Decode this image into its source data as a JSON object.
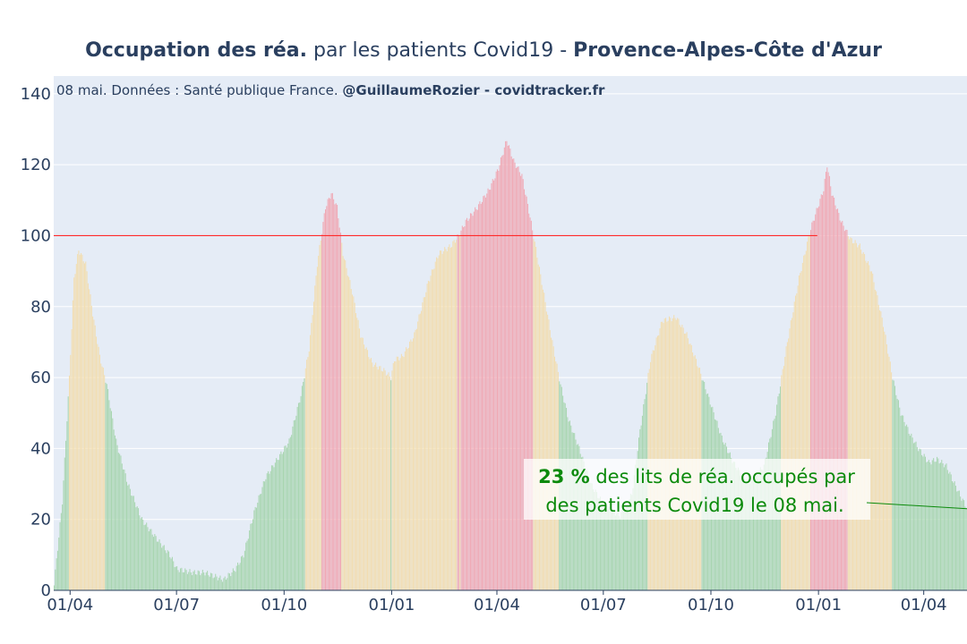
{
  "title": {
    "bold_1": "Occupation des réa.",
    "normal": " par les patients Covid19 - ",
    "bold_2": "Provence-Alpes-Côte d'Azur"
  },
  "subtitle": {
    "normal": "08 mai. Données : Santé publique France. ",
    "bold": "@GuillaumeRozier - covidtracker.fr"
  },
  "annotation": {
    "value": "23",
    "unit": " %",
    "line1": " des lits de réa. occupés par",
    "line2": "des patients Covid19 le 08 mai."
  },
  "colors": {
    "green": "#a8d5b0",
    "orange": "#f2ddb0",
    "red": "#f0a8b4",
    "threshold": "#ff2a2a",
    "plot_bg": "#e5ecf6",
    "annotation_text": "#0b8a0b"
  },
  "chart_data": {
    "type": "bar",
    "title": "Occupation des réa. par les patients Covid19 - Provence-Alpes-Côte d'Azur",
    "x_tick_labels": [
      "01/04",
      "01/07",
      "01/10",
      "01/01",
      "01/04",
      "01/07",
      "01/10",
      "01/01",
      "01/04"
    ],
    "x_tick_dates": [
      "2020-04-01",
      "2020-07-01",
      "2020-10-01",
      "2021-01-01",
      "2021-04-01",
      "2021-07-01",
      "2021-10-01",
      "2022-01-01",
      "2022-04-01"
    ],
    "xlim": [
      "2020-03-18",
      "2022-05-08"
    ],
    "y_tick_labels": [
      "0",
      "20",
      "40",
      "60",
      "80",
      "100",
      "120",
      "140"
    ],
    "ylim": [
      0,
      145
    ],
    "grid": true,
    "threshold": {
      "y": 100,
      "x_start": "2020-03-18",
      "x_end": "2021-12-31"
    },
    "color_rule": "green below 60, orange 60 to 100, red at or above 100",
    "series_anchors": [
      [
        "2020-03-18",
        2
      ],
      [
        "2020-03-25",
        25
      ],
      [
        "2020-03-31",
        60
      ],
      [
        "2020-04-04",
        88
      ],
      [
        "2020-04-08",
        96
      ],
      [
        "2020-04-14",
        92
      ],
      [
        "2020-04-20",
        78
      ],
      [
        "2020-04-26",
        66
      ],
      [
        "2020-05-02",
        58
      ],
      [
        "2020-05-10",
        42
      ],
      [
        "2020-05-20",
        30
      ],
      [
        "2020-06-01",
        20
      ],
      [
        "2020-06-15",
        14
      ],
      [
        "2020-06-25",
        10
      ],
      [
        "2020-07-01",
        6
      ],
      [
        "2020-07-15",
        5
      ],
      [
        "2020-07-25",
        5
      ],
      [
        "2020-08-10",
        3
      ],
      [
        "2020-08-20",
        6
      ],
      [
        "2020-08-27",
        10
      ],
      [
        "2020-09-05",
        22
      ],
      [
        "2020-09-15",
        32
      ],
      [
        "2020-09-25",
        37
      ],
      [
        "2020-10-05",
        42
      ],
      [
        "2020-10-15",
        55
      ],
      [
        "2020-10-22",
        68
      ],
      [
        "2020-10-29",
        92
      ],
      [
        "2020-11-05",
        108
      ],
      [
        "2020-11-10",
        112
      ],
      [
        "2020-11-15",
        108
      ],
      [
        "2020-11-20",
        95
      ],
      [
        "2020-11-28",
        84
      ],
      [
        "2020-12-05",
        72
      ],
      [
        "2020-12-15",
        64
      ],
      [
        "2020-12-25",
        62
      ],
      [
        "2020-12-31",
        60
      ],
      [
        "2021-01-03",
        65
      ],
      [
        "2021-01-10",
        66
      ],
      [
        "2021-01-20",
        72
      ],
      [
        "2021-02-01",
        87
      ],
      [
        "2021-02-10",
        95
      ],
      [
        "2021-02-20",
        97
      ],
      [
        "2021-02-27",
        100
      ],
      [
        "2021-03-05",
        104
      ],
      [
        "2021-03-15",
        108
      ],
      [
        "2021-03-25",
        113
      ],
      [
        "2021-04-02",
        119
      ],
      [
        "2021-04-09",
        127
      ],
      [
        "2021-04-15",
        121
      ],
      [
        "2021-04-22",
        117
      ],
      [
        "2021-04-28",
        107
      ],
      [
        "2021-05-03",
        98
      ],
      [
        "2021-05-10",
        85
      ],
      [
        "2021-05-18",
        70
      ],
      [
        "2021-05-25",
        58
      ],
      [
        "2021-06-01",
        48
      ],
      [
        "2021-06-10",
        40
      ],
      [
        "2021-06-20",
        30
      ],
      [
        "2021-07-01",
        24
      ],
      [
        "2021-07-15",
        21
      ],
      [
        "2021-07-25",
        27
      ],
      [
        "2021-08-01",
        45
      ],
      [
        "2021-08-10",
        65
      ],
      [
        "2021-08-20",
        76
      ],
      [
        "2021-09-01",
        77
      ],
      [
        "2021-09-10",
        72
      ],
      [
        "2021-09-20",
        63
      ],
      [
        "2021-10-01",
        52
      ],
      [
        "2021-10-10",
        43
      ],
      [
        "2021-10-20",
        36
      ],
      [
        "2021-11-01",
        30
      ],
      [
        "2021-11-15",
        35
      ],
      [
        "2021-11-25",
        50
      ],
      [
        "2021-12-05",
        70
      ],
      [
        "2021-12-15",
        88
      ],
      [
        "2021-12-25",
        102
      ],
      [
        "2022-01-05",
        113
      ],
      [
        "2022-01-08",
        120
      ],
      [
        "2022-01-12",
        112
      ],
      [
        "2022-01-20",
        104
      ],
      [
        "2022-01-28",
        99
      ],
      [
        "2022-02-05",
        97
      ],
      [
        "2022-02-15",
        90
      ],
      [
        "2022-02-25",
        75
      ],
      [
        "2022-03-05",
        60
      ],
      [
        "2022-03-12",
        50
      ],
      [
        "2022-03-20",
        44
      ],
      [
        "2022-03-27",
        40
      ],
      [
        "2022-04-05",
        36
      ],
      [
        "2022-04-12",
        37
      ],
      [
        "2022-04-20",
        35
      ],
      [
        "2022-04-27",
        30
      ],
      [
        "2022-05-03",
        26
      ],
      [
        "2022-05-08",
        23
      ]
    ],
    "latest": {
      "date": "2022-05-08",
      "value": 23
    }
  }
}
